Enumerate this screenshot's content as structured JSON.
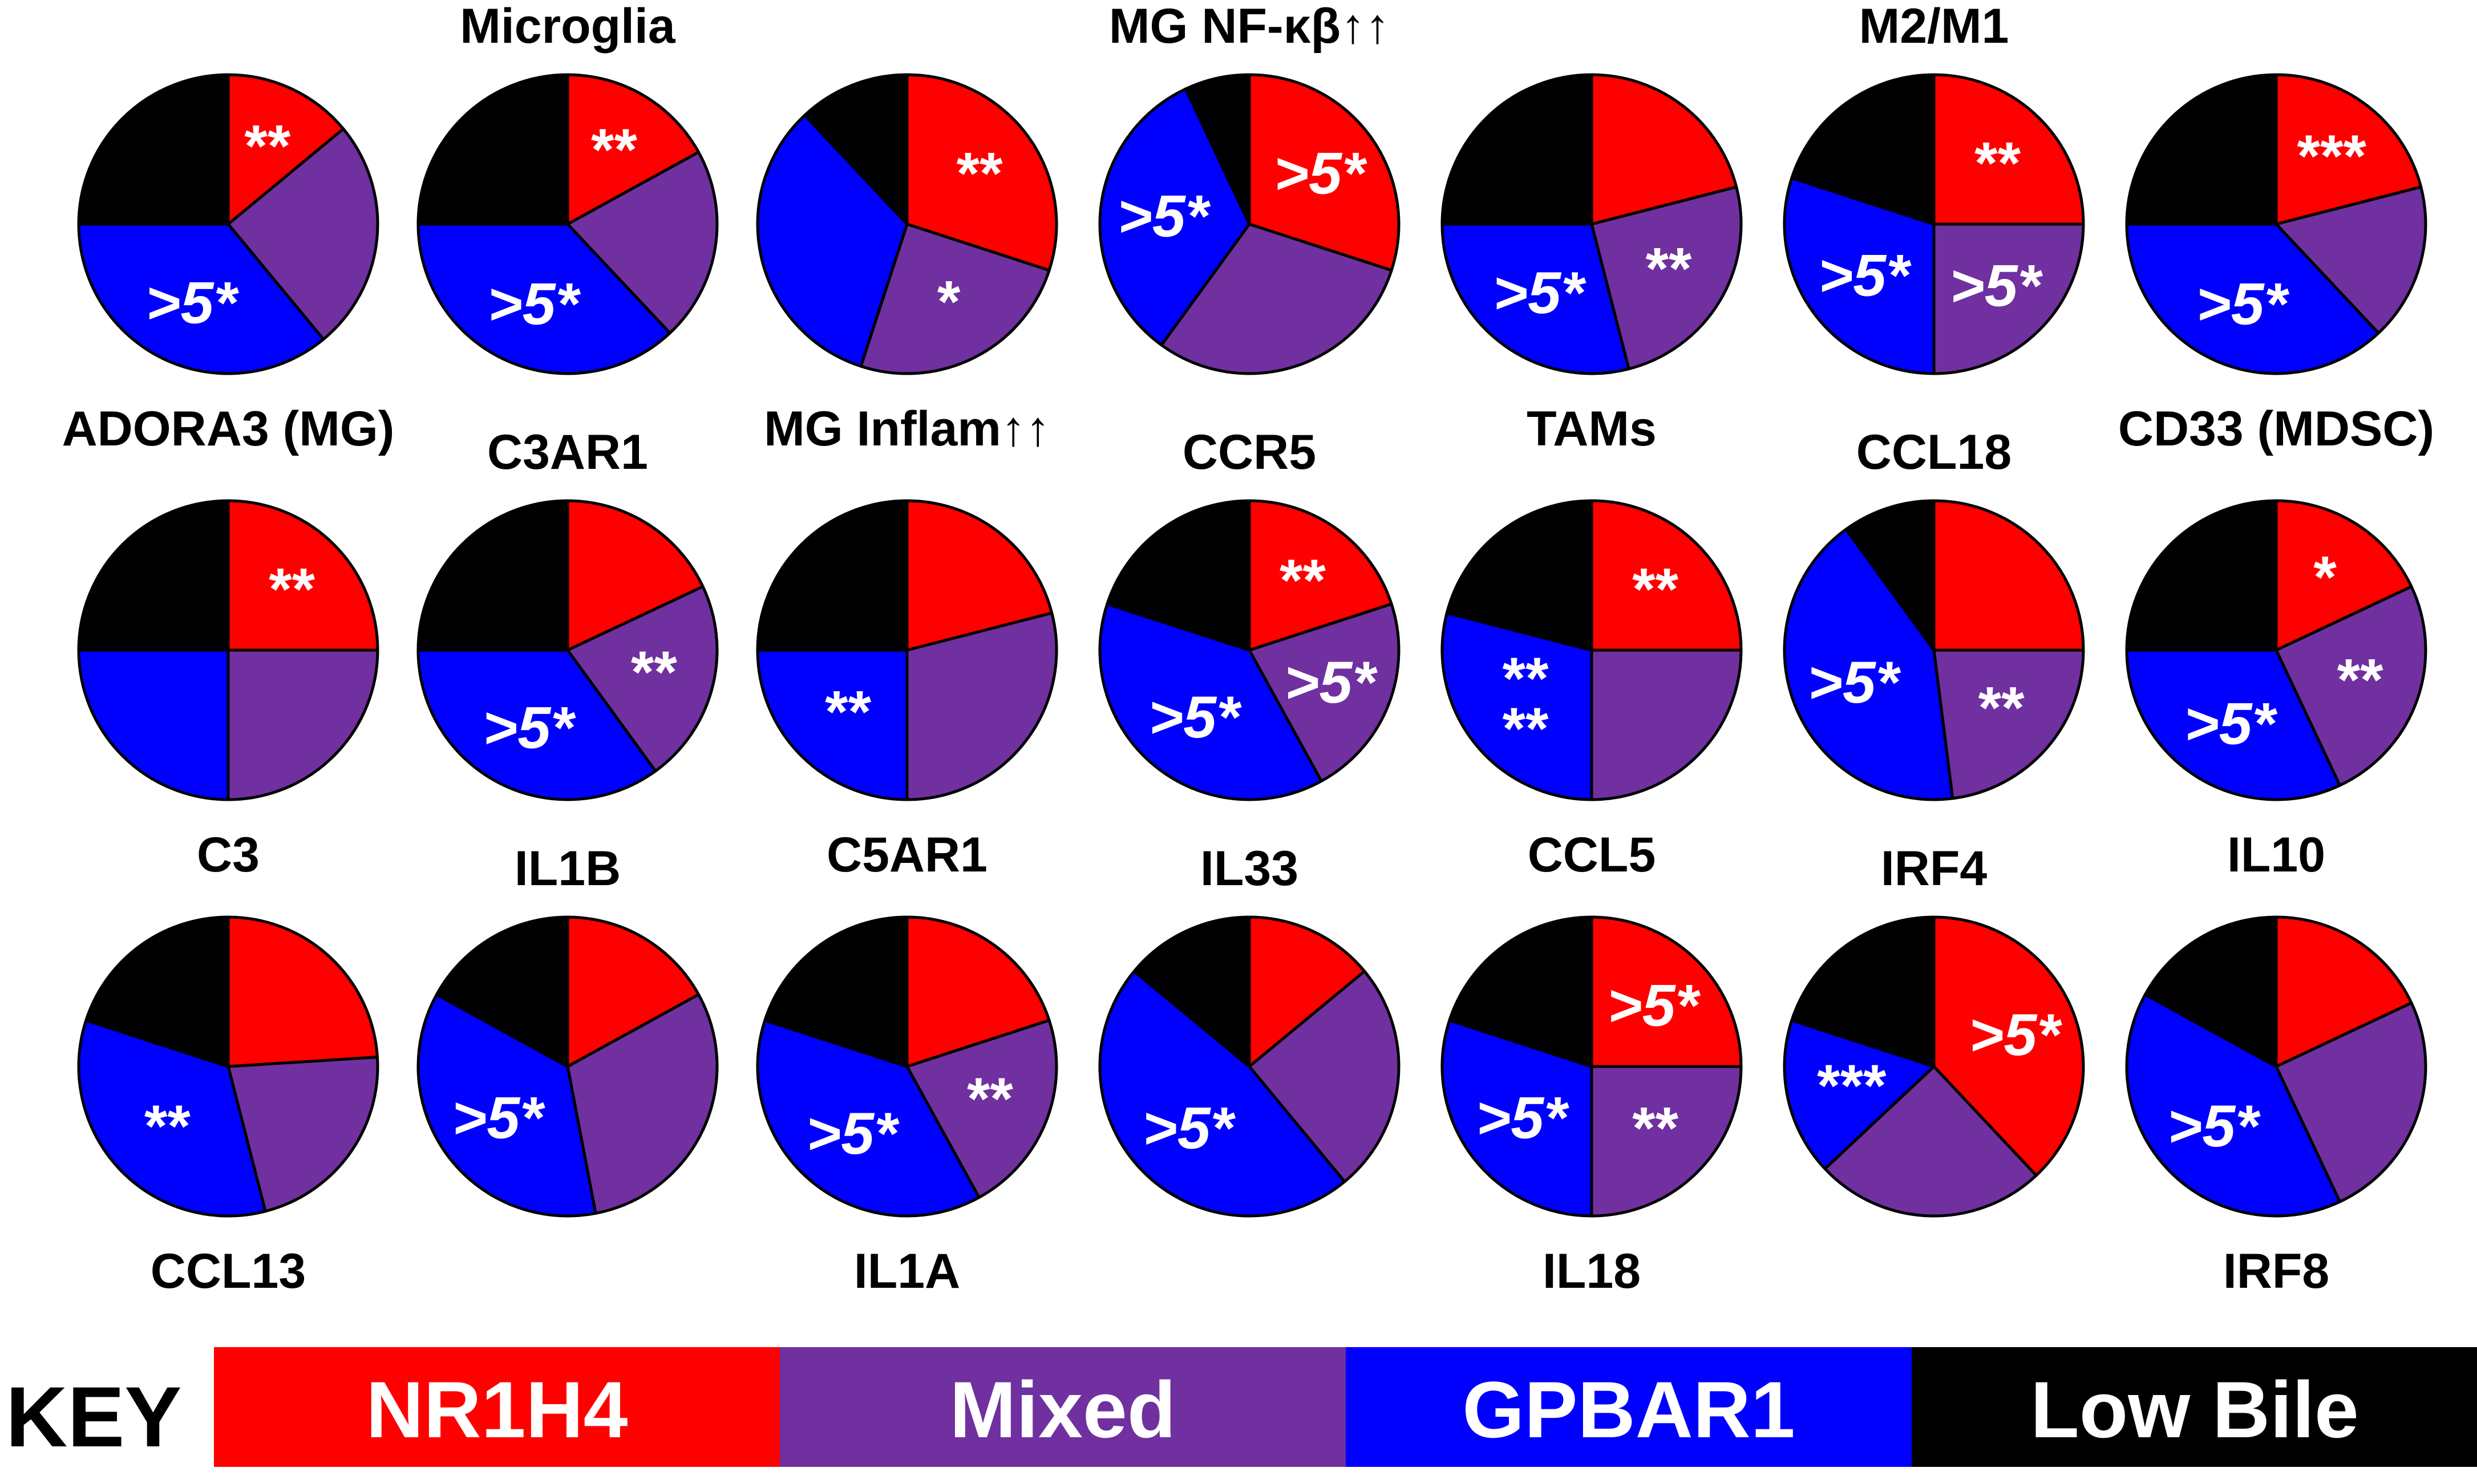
{
  "chart_data": {
    "type": "pie",
    "description_legend": "KEY",
    "slice_order": [
      "NR1H4",
      "Mixed",
      "GPBAR1",
      "Low Bile"
    ],
    "colors": {
      "NR1H4": "#ff0000",
      "Mixed": "#7030a0",
      "GPBAR1": "#0000ff",
      "Low Bile": "#000000"
    },
    "legend": {
      "title": "KEY",
      "entries": [
        "NR1H4",
        "Mixed",
        "GPBAR1",
        "Low Bile"
      ]
    },
    "charts": [
      {
        "label": "ADORA3 (MG)",
        "label_pos": "below",
        "values": [
          14,
          25,
          36,
          25
        ],
        "annotations": [
          "**",
          "",
          ">5*",
          ""
        ]
      },
      {
        "label": "Microglia",
        "label_pos": "above",
        "values": [
          17,
          21,
          37,
          25
        ],
        "annotations": [
          "**",
          "",
          ">5*",
          ""
        ]
      },
      {
        "label": "MG Inflam↑↑",
        "label_pos": "below",
        "values": [
          30,
          25,
          33,
          12
        ],
        "annotations": [
          "**",
          "*",
          "",
          ""
        ]
      },
      {
        "label": "MG NF-κβ↑↑",
        "label_pos": "above",
        "values": [
          30,
          30,
          33,
          7
        ],
        "annotations": [
          ">5*",
          "",
          ">5*",
          ""
        ]
      },
      {
        "label": "TAMs",
        "label_pos": "below",
        "values": [
          21,
          25,
          29,
          25
        ],
        "annotations": [
          "",
          "**",
          ">5*",
          ""
        ]
      },
      {
        "label": "M2/M1",
        "label_pos": "above",
        "values": [
          25,
          25,
          30,
          20
        ],
        "annotations": [
          "**",
          ">5*",
          ">5*",
          ""
        ]
      },
      {
        "label": "CD33 (MDSC)",
        "label_pos": "below",
        "values": [
          21,
          17,
          37,
          25
        ],
        "annotations": [
          "***",
          "",
          ">5*",
          ""
        ]
      },
      {
        "label": "C3",
        "label_pos": "below",
        "values": [
          25,
          25,
          25,
          25
        ],
        "annotations": [
          "**",
          "",
          "",
          ""
        ]
      },
      {
        "label": "C3AR1",
        "label_pos": "above",
        "values": [
          18,
          22,
          35,
          25
        ],
        "annotations": [
          "",
          "**",
          ">5*",
          ""
        ]
      },
      {
        "label": "C5AR1",
        "label_pos": "below",
        "values": [
          21,
          29,
          25,
          25
        ],
        "annotations": [
          "",
          "",
          "**",
          ""
        ]
      },
      {
        "label": "CCR5",
        "label_pos": "above",
        "values": [
          20,
          22,
          38,
          20
        ],
        "annotations": [
          "**",
          ">5*",
          ">5*",
          ""
        ]
      },
      {
        "label": "CCL5",
        "label_pos": "below",
        "values": [
          25,
          25,
          29,
          21
        ],
        "annotations": [
          "**",
          "",
          "**\n**",
          ""
        ]
      },
      {
        "label": "CCL18",
        "label_pos": "above",
        "values": [
          25,
          23,
          42,
          10
        ],
        "annotations": [
          "",
          "**",
          ">5*",
          ""
        ]
      },
      {
        "label": "IL10",
        "label_pos": "below",
        "values": [
          18,
          25,
          32,
          25
        ],
        "annotations": [
          "*",
          "**",
          ">5*",
          ""
        ]
      },
      {
        "label": "CCL13",
        "label_pos": "below",
        "values": [
          24,
          22,
          34,
          20
        ],
        "annotations": [
          "",
          "",
          "**",
          ""
        ]
      },
      {
        "label": "IL1B",
        "label_pos": "above",
        "values": [
          17,
          30,
          36,
          17
        ],
        "annotations": [
          "",
          "",
          ">5*",
          ""
        ]
      },
      {
        "label": "IL1A",
        "label_pos": "below",
        "values": [
          20,
          22,
          38,
          20
        ],
        "annotations": [
          "",
          "**",
          ">5*",
          ""
        ]
      },
      {
        "label": "IL33",
        "label_pos": "above",
        "values": [
          14,
          25,
          47,
          14
        ],
        "annotations": [
          "",
          "",
          ">5*",
          ""
        ]
      },
      {
        "label": "IL18",
        "label_pos": "below",
        "values": [
          25,
          25,
          30,
          20
        ],
        "annotations": [
          ">5*",
          "**",
          ">5*",
          ""
        ]
      },
      {
        "label": "IRF4",
        "label_pos": "above",
        "values": [
          38,
          25,
          17,
          20
        ],
        "annotations": [
          ">5*",
          "",
          "***",
          ""
        ]
      },
      {
        "label": "IRF8",
        "label_pos": "below",
        "values": [
          18,
          25,
          40,
          17
        ],
        "annotations": [
          "",
          "",
          ">5*",
          ""
        ]
      }
    ]
  }
}
